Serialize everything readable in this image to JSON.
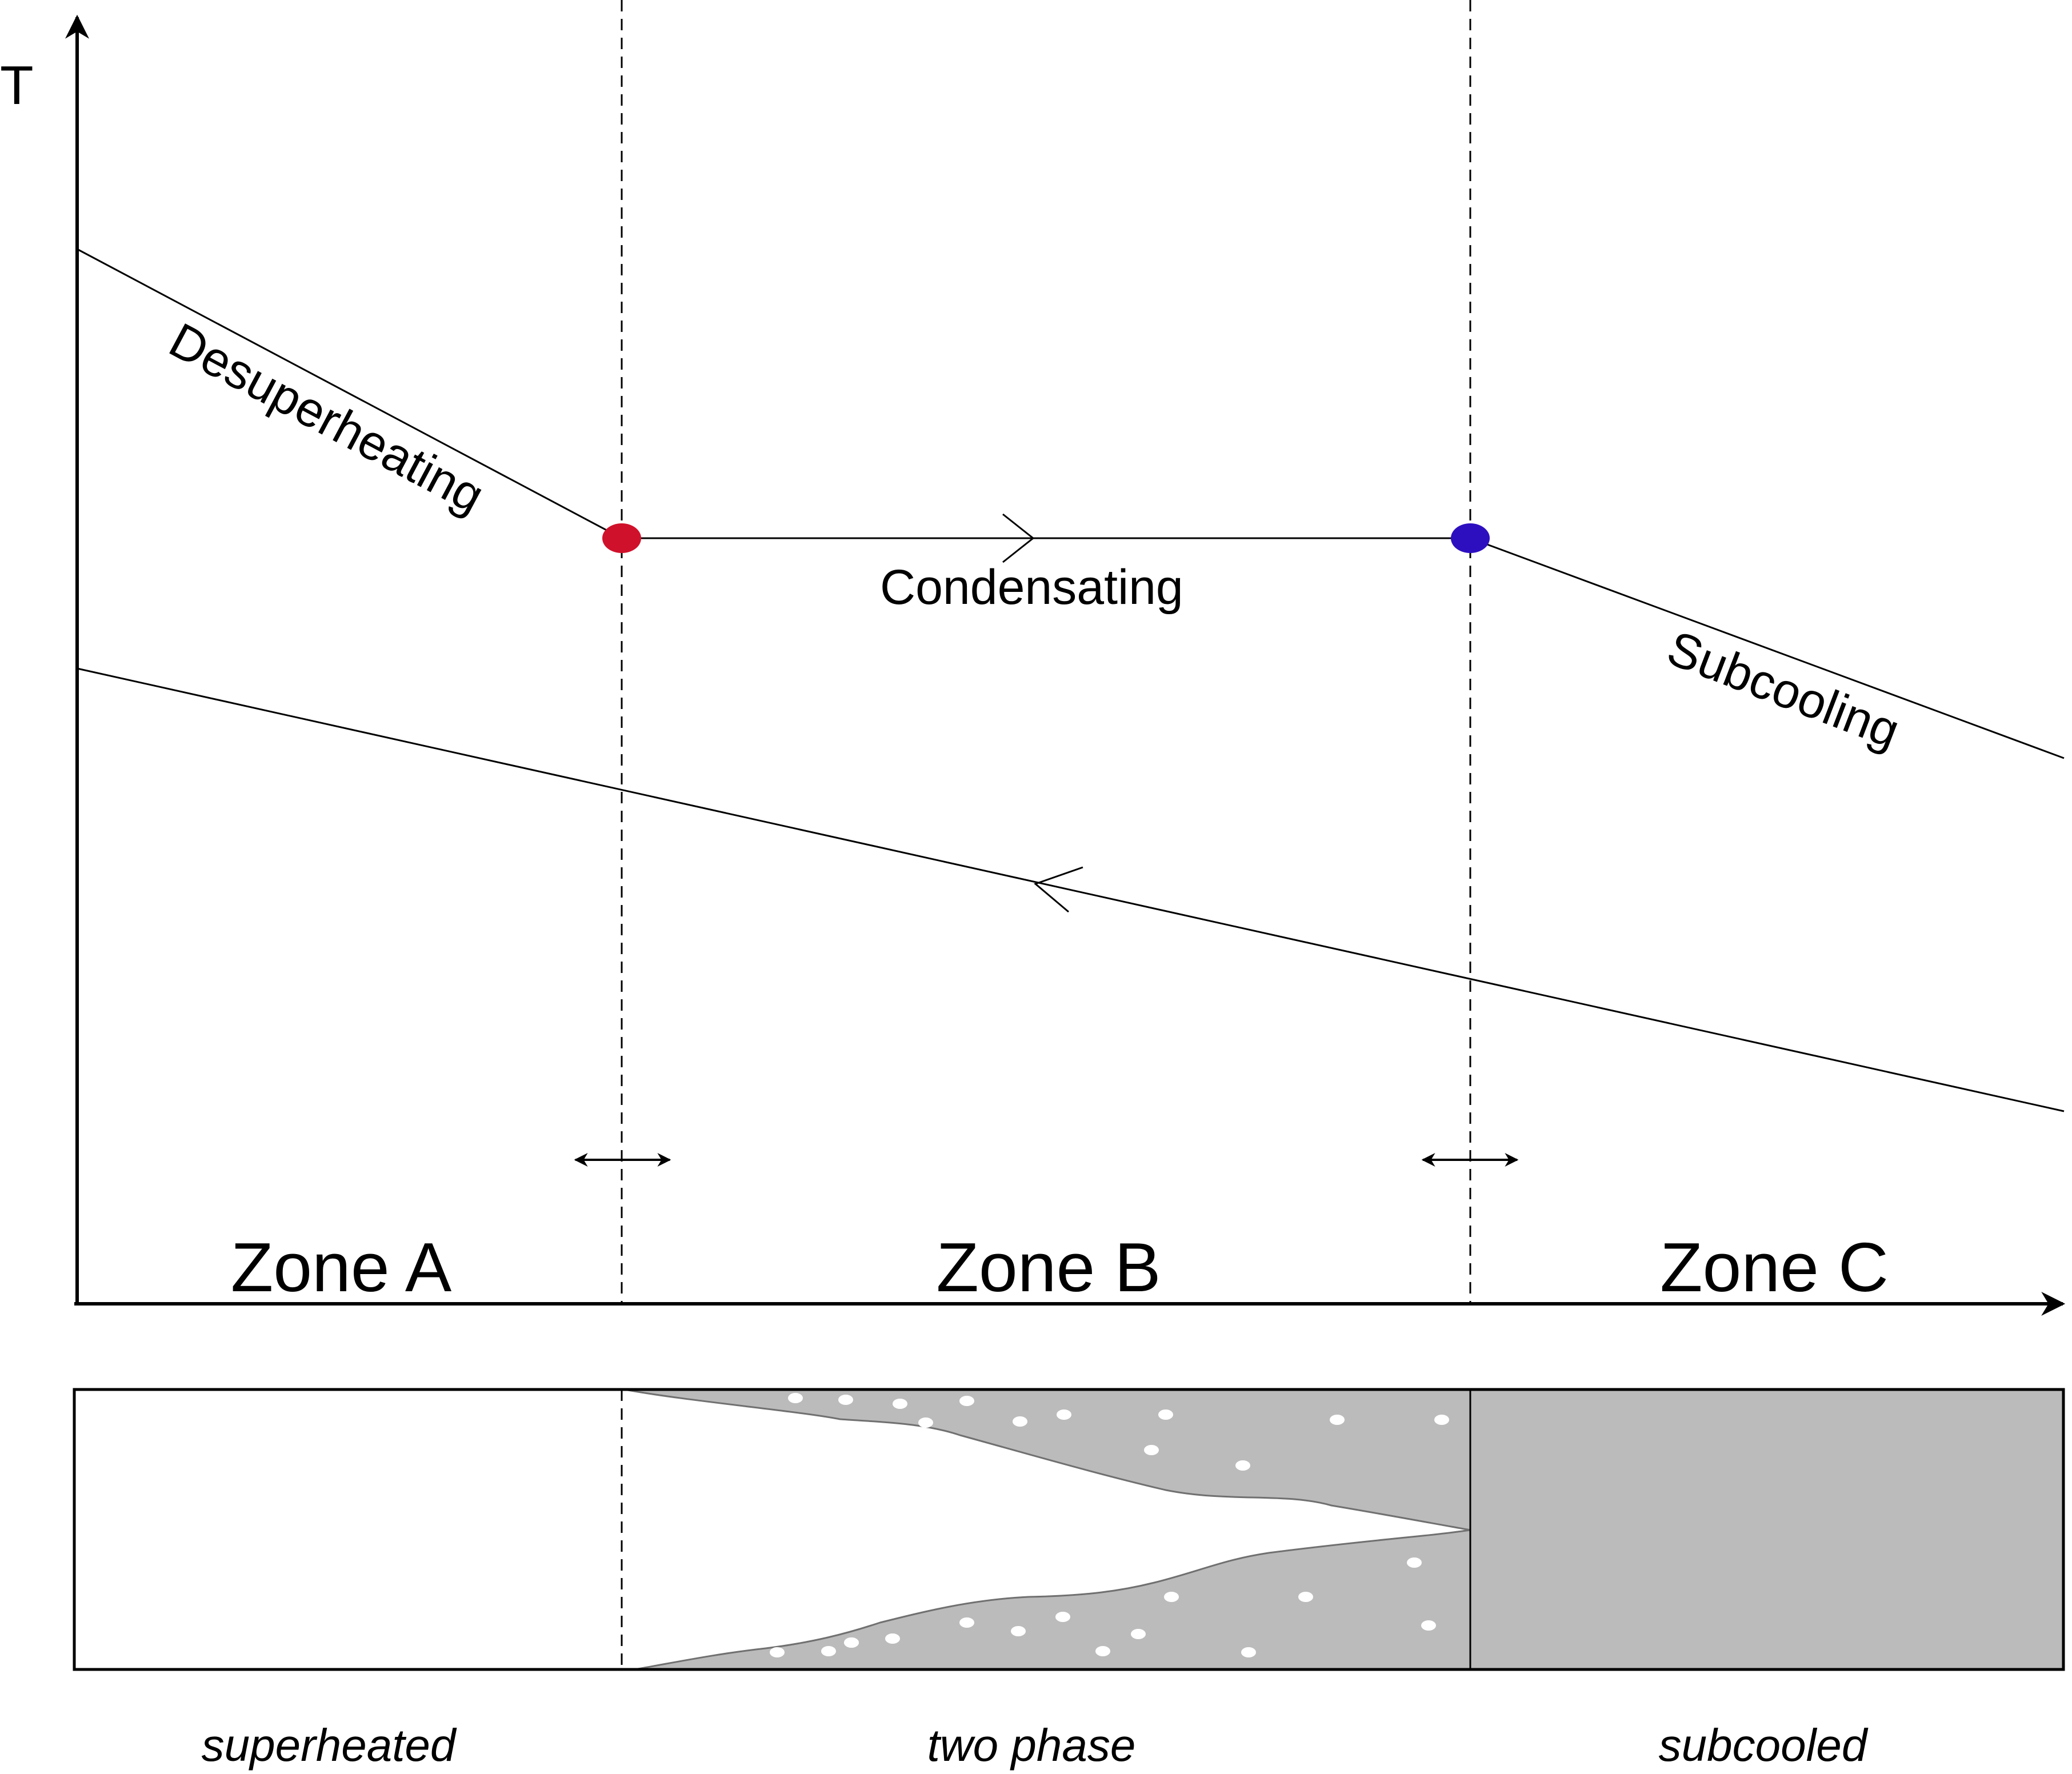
{
  "axes": {
    "y_label": "T"
  },
  "curves": {
    "desuperheating_label": "Desuperheating",
    "condensating_label": "Condensating",
    "subcooling_label": "Subcooling"
  },
  "markers": {
    "saturated_vapor_color": "#d0112b",
    "saturated_liquid_color": "#2e0fc0"
  },
  "zones": [
    {
      "label": "Zone A"
    },
    {
      "label": "Zone B"
    },
    {
      "label": "Zone C"
    }
  ],
  "states": [
    {
      "label": "superheated"
    },
    {
      "label": "two phase"
    },
    {
      "label": "subcooled"
    }
  ],
  "colors": {
    "liquid_fill": "#bbbbbb",
    "liquid_edge": "#707070",
    "bubble": "#ffffff"
  }
}
